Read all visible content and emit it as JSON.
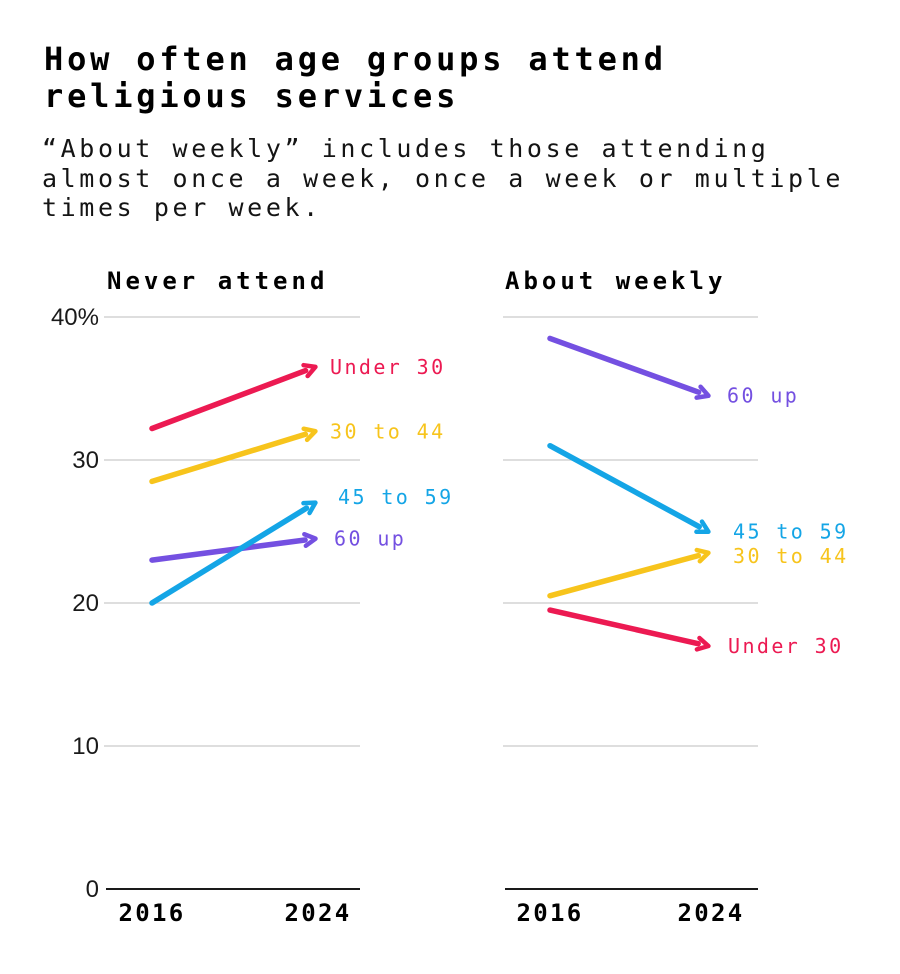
{
  "page": {
    "title": "How often age groups attend\nreligious services",
    "subtitle": "“About weekly” includes those attending\nalmost once a week, once a week or multiple\ntimes per week."
  },
  "colors": {
    "under_30": "#EC1A52",
    "age_30_to_44": "#F7C41C",
    "age_45_to_59": "#14A5E6",
    "age_60_up": "#7450E1",
    "gridline": "#CBCBCB",
    "axis": "#1A1A1A",
    "text": "#000000"
  },
  "chart_data": {
    "type": "line",
    "subtype": "slope-arrows",
    "x": [
      "2016",
      "2024"
    ],
    "ylim": [
      0,
      40
    ],
    "grid": "horizontal",
    "legend_position": "end-of-line labels",
    "yticks": [
      {
        "value": 40,
        "label": "40%"
      },
      {
        "value": 30,
        "label": "30"
      },
      {
        "value": 20,
        "label": "20"
      },
      {
        "value": 10,
        "label": "10"
      },
      {
        "value": 0,
        "label": "0"
      }
    ],
    "panels": [
      {
        "title": "Never attend",
        "show_tick_labels": true,
        "series": [
          {
            "name": "Under 30",
            "color": "#EC1A52",
            "values": [
              32.2,
              36.5
            ],
            "label_dx": 15,
            "label_dy": 0
          },
          {
            "name": "30 to 44",
            "color": "#F7C41C",
            "values": [
              28.5,
              32
            ],
            "label_dx": 15,
            "label_dy": 0
          },
          {
            "name": "60 up",
            "color": "#7450E1",
            "values": [
              23,
              24.5
            ],
            "label_dx": 19,
            "label_dy": 0
          },
          {
            "name": "45 to 59",
            "color": "#14A5E6",
            "values": [
              20,
              27
            ],
            "label_dx": 23,
            "label_dy": -6
          }
        ]
      },
      {
        "title": "About weekly",
        "show_tick_labels": false,
        "series": [
          {
            "name": "60 up",
            "color": "#7450E1",
            "values": [
              38.5,
              34.5
            ],
            "label_dx": 19,
            "label_dy": 0
          },
          {
            "name": "45 to 59",
            "color": "#14A5E6",
            "values": [
              31,
              25
            ],
            "label_dx": 25,
            "label_dy": 0
          },
          {
            "name": "30 to 44",
            "color": "#F7C41C",
            "values": [
              20.5,
              23.5
            ],
            "label_dx": 25,
            "label_dy": 3
          },
          {
            "name": "Under 30",
            "color": "#EC1A52",
            "values": [
              19.5,
              17
            ],
            "label_dx": 20,
            "label_dy": 0
          }
        ]
      }
    ]
  }
}
